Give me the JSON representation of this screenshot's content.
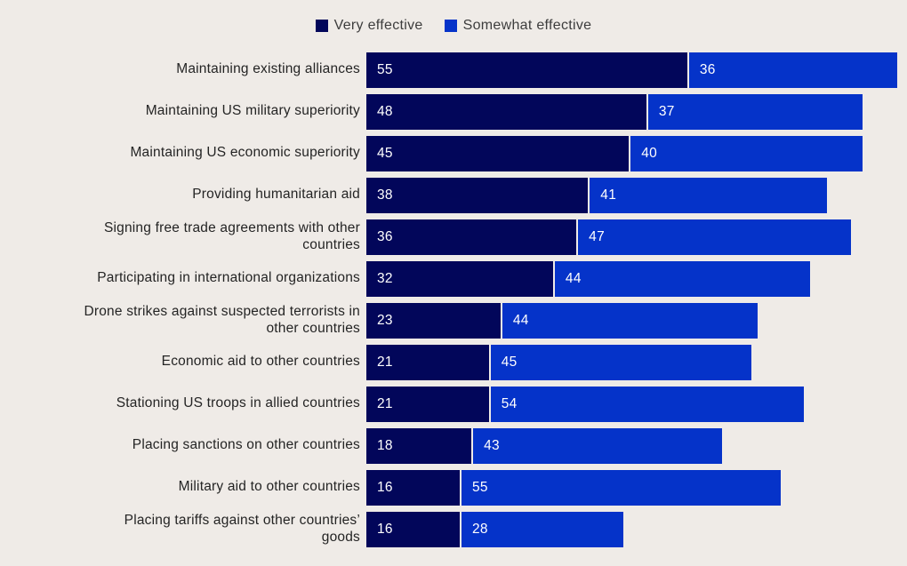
{
  "colors": {
    "background": "#efebe7",
    "very_effective": "#02065a",
    "somewhat_effective": "#0533c9",
    "label_text": "#242424",
    "value_text": "#ffffff"
  },
  "legend": [
    {
      "label": "Very effective",
      "color": "#02065a"
    },
    {
      "label": "Somewhat effective",
      "color": "#0533c9"
    }
  ],
  "chart_data": {
    "type": "bar",
    "orientation": "horizontal",
    "stacked": true,
    "title": "",
    "xlabel": "",
    "ylabel": "",
    "xlim": [
      0,
      91
    ],
    "grid": false,
    "legend_position": "top-center",
    "value_labels": "inside-segment-start",
    "categories": [
      "Maintaining existing alliances",
      "Maintaining US military superiority",
      "Maintaining US economic superiority",
      "Providing humanitarian aid",
      "Signing free trade agreements with other\ncountries",
      "Participating in international organizations",
      "Drone strikes against suspected terrorists in\nother countries",
      "Economic aid to other countries",
      "Stationing US troops in allied countries",
      "Placing sanctions on other countries",
      "Military aid to other countries",
      "Placing tariffs against other countries’\ngoods"
    ],
    "series": [
      {
        "name": "Very effective",
        "color": "#02065a",
        "values": [
          55,
          48,
          45,
          38,
          36,
          32,
          23,
          21,
          21,
          18,
          16,
          16
        ]
      },
      {
        "name": "Somewhat effective",
        "color": "#0533c9",
        "values": [
          36,
          37,
          40,
          41,
          47,
          44,
          44,
          45,
          54,
          43,
          55,
          28
        ]
      }
    ]
  }
}
